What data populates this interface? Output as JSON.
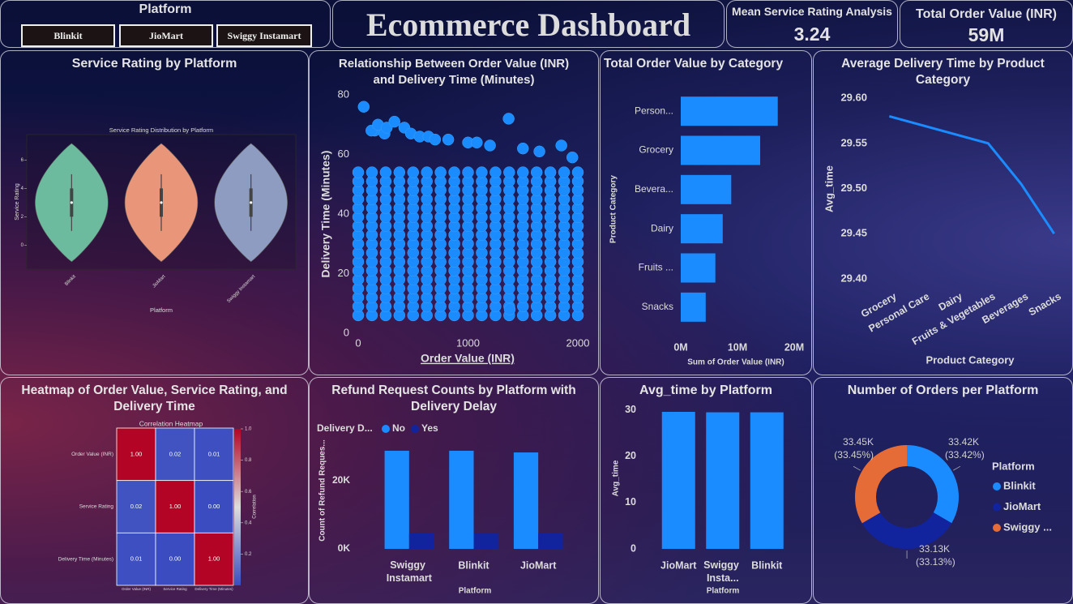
{
  "header": {
    "slicer_title": "Platform",
    "slicer_items": [
      "Blinkit",
      "JioMart",
      "Swiggy Instamart"
    ],
    "title": "Ecommerce Dashboard"
  },
  "kpis": [
    {
      "label": "Mean Service Rating Analysis",
      "value": "3.24"
    },
    {
      "label": "Total Order Value (INR)",
      "value": "59M"
    }
  ],
  "chart_data": [
    {
      "type": "violin",
      "title": "Service Rating by Platform",
      "subtitle": "Service Rating Distribution by Platform",
      "x_label": "Platform",
      "y_label": "Service Rating",
      "categories": [
        "Blinkit",
        "JioMart",
        "Swiggy Instamart"
      ],
      "colors": [
        "#6dbb9f",
        "#e9957a",
        "#8e9cc2"
      ],
      "min": [
        1,
        1,
        1
      ],
      "q1": [
        2,
        2,
        2
      ],
      "median": [
        3,
        3,
        3
      ],
      "q3": [
        4,
        4,
        4
      ],
      "max": [
        5,
        5,
        5
      ],
      "ylim": [
        -1.7,
        7.8
      ],
      "yticks": [
        0,
        2,
        4,
        6
      ]
    },
    {
      "type": "scatter",
      "title": "Relationship Between Order Value (INR) and Delivery Time (Minutes)",
      "x_label": "Order Value (INR)",
      "y_label": "Delivery Time (Minutes)",
      "color": "#1a8cff",
      "x": [
        0,
        125,
        250,
        375,
        500,
        625,
        750,
        875,
        1000,
        1125,
        1250,
        1375,
        1500,
        1625,
        1750,
        1875,
        2000,
        0,
        125,
        250,
        375,
        500,
        625,
        750,
        875,
        1000,
        1125,
        1250,
        1375,
        1500,
        1625,
        1750,
        1875,
        2000,
        0,
        125,
        250,
        375,
        500,
        625,
        750,
        875,
        1000,
        1125,
        1250,
        1375,
        1500,
        1625,
        1750,
        1875,
        2000,
        0,
        125,
        250,
        375,
        500,
        625,
        750,
        875,
        1000,
        1125,
        1250,
        1375,
        1500,
        1625,
        1750,
        1875,
        2000,
        0,
        125,
        250,
        375,
        500,
        625,
        750,
        875,
        1000,
        1125,
        1250,
        1375,
        1500,
        1625,
        1750,
        1875,
        2000,
        0,
        125,
        250,
        375,
        500,
        625,
        750,
        875,
        1000,
        1125,
        1250,
        1375,
        1500,
        1625,
        1750,
        1875,
        2000,
        0,
        125,
        250,
        375,
        500,
        625,
        750,
        875,
        1000,
        1125,
        1250,
        1375,
        1500,
        1625,
        1750,
        1875,
        2000,
        0,
        125,
        250,
        375,
        500,
        625,
        750,
        875,
        1000,
        1125,
        1250,
        1375,
        1500,
        1625,
        1750,
        1875,
        2000,
        0,
        125,
        250,
        375,
        500,
        625,
        750,
        875,
        1000,
        1125,
        1250,
        1375,
        1500,
        1625,
        1750,
        1875,
        2000,
        0,
        125,
        250,
        375,
        500,
        625,
        750,
        875,
        1000,
        1125,
        1250,
        1375,
        1500,
        1625,
        1750,
        1875,
        2000,
        0,
        125,
        250,
        375,
        500,
        625,
        750,
        875,
        1000,
        1125,
        1250,
        1375,
        1500,
        1625,
        1750,
        1875,
        2000,
        0,
        125,
        250,
        375,
        500,
        625,
        750,
        875,
        1000,
        1125,
        1250,
        1375,
        1500,
        1625,
        1750,
        1875,
        2000,
        0,
        125,
        250,
        375,
        500,
        625,
        750,
        875,
        1000,
        1125,
        1250,
        1375,
        1500,
        1625,
        1750,
        1875,
        2000,
        0,
        125,
        250,
        375,
        500,
        625,
        750,
        875,
        1000,
        1125,
        1250,
        1375,
        1500,
        1625,
        1750,
        1875,
        2000,
        0,
        125,
        250,
        375,
        500,
        625,
        750,
        875,
        1000,
        1125,
        1250,
        1375,
        1500,
        1625,
        1750,
        1875,
        2000,
        0,
        125,
        250,
        375,
        500,
        625,
        750,
        875,
        1000,
        1125,
        1250,
        1375,
        1500,
        1625,
        1750,
        1875,
        2000,
        0,
        125,
        250,
        375,
        500,
        625,
        750,
        875,
        1000,
        1125,
        1250,
        1375,
        1500,
        1625,
        1750,
        1875,
        2000,
        50,
        150,
        120,
        180,
        240,
        260,
        330,
        420,
        480,
        560,
        640,
        700,
        820,
        1000,
        1080,
        1200,
        1370,
        1500,
        1650,
        1850,
        1950,
        1380
      ],
      "y": [
        6,
        6,
        6,
        6,
        6,
        6,
        6,
        6,
        6,
        6,
        6,
        6,
        6,
        6,
        6,
        6,
        6,
        9,
        9,
        9,
        9,
        9,
        9,
        9,
        9,
        9,
        9,
        9,
        9,
        9,
        9,
        9,
        9,
        9,
        12,
        12,
        12,
        12,
        12,
        12,
        12,
        12,
        12,
        12,
        12,
        12,
        12,
        12,
        12,
        12,
        12,
        15,
        15,
        15,
        15,
        15,
        15,
        15,
        15,
        15,
        15,
        15,
        15,
        15,
        15,
        15,
        15,
        15,
        18,
        18,
        18,
        18,
        18,
        18,
        18,
        18,
        18,
        18,
        18,
        18,
        18,
        18,
        18,
        18,
        18,
        21,
        21,
        21,
        21,
        21,
        21,
        21,
        21,
        21,
        21,
        21,
        21,
        21,
        21,
        21,
        21,
        21,
        24,
        24,
        24,
        24,
        24,
        24,
        24,
        24,
        24,
        24,
        24,
        24,
        24,
        24,
        24,
        24,
        24,
        27,
        27,
        27,
        27,
        27,
        27,
        27,
        27,
        27,
        27,
        27,
        27,
        27,
        27,
        27,
        27,
        27,
        30,
        30,
        30,
        30,
        30,
        30,
        30,
        30,
        30,
        30,
        30,
        30,
        30,
        30,
        30,
        30,
        30,
        33,
        33,
        33,
        33,
        33,
        33,
        33,
        33,
        33,
        33,
        33,
        33,
        33,
        33,
        33,
        33,
        33,
        36,
        36,
        36,
        36,
        36,
        36,
        36,
        36,
        36,
        36,
        36,
        36,
        36,
        36,
        36,
        36,
        36,
        39,
        39,
        39,
        39,
        39,
        39,
        39,
        39,
        39,
        39,
        39,
        39,
        39,
        39,
        39,
        39,
        39,
        42,
        42,
        42,
        42,
        42,
        42,
        42,
        42,
        42,
        42,
        42,
        42,
        42,
        42,
        42,
        42,
        42,
        45,
        45,
        45,
        45,
        45,
        45,
        45,
        45,
        45,
        45,
        45,
        45,
        45,
        45,
        45,
        45,
        45,
        48,
        48,
        48,
        48,
        48,
        48,
        48,
        48,
        48,
        48,
        48,
        48,
        48,
        48,
        48,
        48,
        48,
        51,
        51,
        51,
        51,
        51,
        51,
        51,
        51,
        51,
        51,
        51,
        51,
        51,
        51,
        51,
        51,
        51,
        54,
        54,
        54,
        54,
        54,
        54,
        54,
        54,
        54,
        54,
        54,
        54,
        54,
        54,
        54,
        54,
        54,
        76,
        68,
        68,
        70,
        67,
        69,
        71,
        69,
        67,
        66,
        66,
        65,
        65,
        64,
        64,
        63,
        72,
        62,
        61,
        63,
        59,
        8
      ],
      "xlim": [
        0,
        2000
      ],
      "ylim": [
        0,
        80
      ],
      "xticks": [
        0,
        1000,
        2000
      ],
      "yticks": [
        0,
        20,
        40,
        60,
        80
      ]
    },
    {
      "type": "hbar",
      "title": "Total Order Value by Category",
      "x_label": "Sum of Order Value (INR)",
      "y_label": "Product Category",
      "color": "#1a8cff",
      "categories": [
        "Person...",
        "Grocery",
        "Bevera...",
        "Dairy",
        "Fruits ...",
        "Snacks"
      ],
      "values": [
        17100000,
        14000000,
        8900000,
        7400000,
        6100000,
        4400000
      ],
      "xlim": [
        0,
        22000000
      ],
      "xticks": [
        {
          "value": 0,
          "label": "0M"
        },
        {
          "value": 10000000,
          "label": "10M"
        },
        {
          "value": 20000000,
          "label": "20M"
        }
      ]
    },
    {
      "type": "line",
      "title": "Average Delivery Time by Product Category",
      "x_label": "Product Category",
      "y_label": "Avg_time",
      "color": "#1a8cff",
      "categories": [
        "Grocery",
        "Personal Care",
        "Dairy",
        "Fruits & Vegetables",
        "Beverages",
        "Snacks"
      ],
      "values": [
        29.58,
        29.57,
        29.56,
        29.55,
        29.505,
        29.45
      ],
      "ylim": [
        29.39,
        29.61
      ],
      "yticks": [
        {
          "value": 29.4,
          "label": "29.40"
        },
        {
          "value": 29.45,
          "label": "29.45"
        },
        {
          "value": 29.5,
          "label": "29.50"
        },
        {
          "value": 29.55,
          "label": "29.55"
        },
        {
          "value": 29.6,
          "label": "29.60"
        }
      ]
    },
    {
      "type": "heatmap",
      "title": "Heatmap of Order Value, Service Rating, and Delivery Time",
      "subtitle": "Correlation Heatmap",
      "labels": [
        "Order Value (INR)",
        "Service Rating",
        "Delivery Time (Minutes)"
      ],
      "values": [
        [
          1,
          0.02,
          0.01
        ],
        [
          0.02,
          1,
          0
        ],
        [
          0.01,
          0,
          1
        ]
      ],
      "value_labels": [
        [
          "1.00",
          "0.02",
          "0.01"
        ],
        [
          "0.02",
          "1.00",
          "0.00"
        ],
        [
          "0.01",
          "0.00",
          "1.00"
        ]
      ],
      "colorbar_label": "Correlation",
      "colorbar_lim": [
        0,
        1
      ],
      "colorbar_ticks": [
        0.2,
        0.4,
        0.6,
        0.8,
        {
          "value": 1,
          "label": "1.0"
        }
      ]
    },
    {
      "type": "grouped_bar",
      "title": "Refund Request Counts by Platform with Delivery Delay",
      "legend_title": "Delivery D...",
      "x_label": "Platform",
      "y_label": "Count of Refund Reques...",
      "categories": [
        "Swiggy Instamart",
        "Blinkit",
        "JioMart"
      ],
      "series": [
        {
          "name": "No",
          "color": "#1a8cff",
          "values": [
            28800,
            28800,
            28300
          ]
        },
        {
          "name": "Yes",
          "color": "#12239e",
          "values": [
            4600,
            4500,
            4600
          ]
        }
      ],
      "ylim": [
        0,
        32600
      ],
      "yticks": [
        {
          "value": 0,
          "label": "0K"
        },
        {
          "value": 20000,
          "label": "20K"
        }
      ]
    },
    {
      "type": "bar",
      "title": "Avg_time by Platform",
      "x_label": "Platform",
      "y_label": "Avg_time",
      "color": "#1a8cff",
      "categories": [
        "JioMart",
        "Swiggy Insta...",
        "Blinkit"
      ],
      "values": [
        29.6,
        29.5,
        29.5
      ],
      "ylim": [
        0,
        31
      ],
      "yticks": [
        0,
        10,
        20,
        30
      ]
    },
    {
      "type": "donut",
      "title": "Number of Orders per Platform",
      "legend_title": "Platform",
      "categories": [
        "Blinkit",
        "JioMart",
        "Swiggy ..."
      ],
      "colors": [
        "#1a8cff",
        "#12239e",
        "#e66c37"
      ],
      "values": [
        33420,
        33130,
        33450
      ],
      "value_labels": [
        "33.42K",
        "33.13K",
        "33.45K"
      ],
      "percentages": [
        33.42,
        33.13,
        33.45
      ],
      "percentage_labels": [
        "(33.42%)",
        "(33.13%)",
        "(33.45%)"
      ]
    }
  ]
}
